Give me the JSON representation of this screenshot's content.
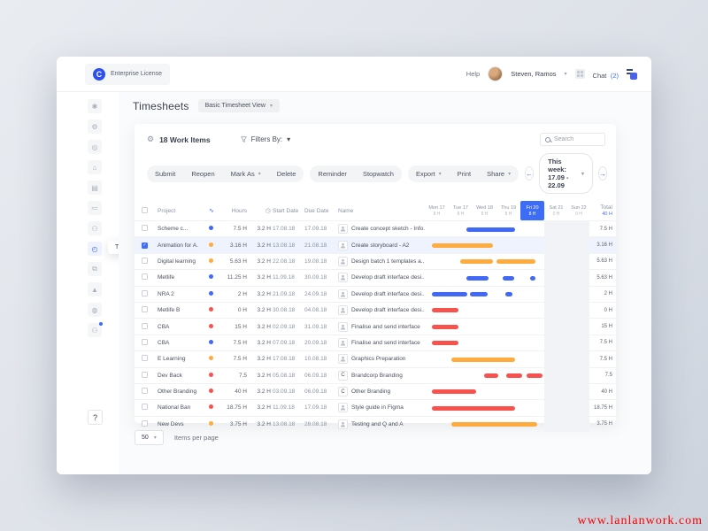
{
  "topbar": {
    "license": "Enterprise License",
    "logo_letter": "C",
    "help": "Help",
    "user": "Steven, Ramos",
    "chat_label": "Chat",
    "chat_count": "(2)"
  },
  "sidebar": {
    "tooltip": "Timesheets",
    "help_label": "?",
    "icons": [
      {
        "name": "dashboard-icon",
        "glyph": "✱"
      },
      {
        "name": "settings-icon",
        "glyph": "⚙"
      },
      {
        "name": "targets-icon",
        "glyph": "◎"
      },
      {
        "name": "home-icon",
        "glyph": "⌂"
      },
      {
        "name": "boards-icon",
        "glyph": "▤"
      },
      {
        "name": "tasks-icon",
        "glyph": "≔"
      },
      {
        "name": "people-icon",
        "glyph": "⚇"
      },
      {
        "name": "timesheets-icon",
        "glyph": "◴",
        "active": true
      },
      {
        "name": "documents-icon",
        "glyph": "⧉"
      },
      {
        "name": "reports-icon",
        "glyph": "▲"
      },
      {
        "name": "preferences-icon",
        "glyph": "◍"
      },
      {
        "name": "profile-icon",
        "glyph": "⚇",
        "badge": true
      }
    ]
  },
  "page": {
    "title": "Timesheets",
    "view_selector": "Basic Timesheet View"
  },
  "toolbar": {
    "work_items": "18 Work Items",
    "filters_label": "Filters By:",
    "search_placeholder": "Search",
    "groups": [
      [
        "Submit",
        "Reopen",
        "Mark As",
        "Delete"
      ],
      [
        "Reminder",
        "Stopwatch"
      ],
      [
        "Export",
        "Print",
        "Share"
      ]
    ],
    "week_label": "This week: 17.09 - 22.09"
  },
  "icons": {
    "chevron_down": "▾",
    "arrow_left": "←",
    "arrow_right": "→",
    "pulse": "∿",
    "clock": "◷",
    "gear": "⚙",
    "check": "✓"
  },
  "table": {
    "headers": {
      "project": "Project",
      "hours": "Hours",
      "start": "Start Date",
      "due": "Due Date",
      "name": "Name",
      "total": "Total",
      "total_sub": "40 H"
    },
    "days": [
      {
        "label": "Mon 17",
        "sub": "8 H"
      },
      {
        "label": "Tue 17",
        "sub": "8 H"
      },
      {
        "label": "Wed 18",
        "sub": "8 H"
      },
      {
        "label": "Thu 19",
        "sub": "8 H"
      },
      {
        "label": "Fri 20",
        "sub": "8 H",
        "active": true
      },
      {
        "label": "Sat 21",
        "sub": "0 H"
      },
      {
        "label": "Sun 22",
        "sub": "0 H"
      }
    ],
    "rows": [
      {
        "project": "Scheme c...",
        "status": "blue",
        "hours": "7.5 H",
        "hours2": "3.2 H",
        "start": "17.08.18",
        "due": "17.09.18",
        "avatar": "person",
        "name": "Create concept sketch - Info...",
        "total": "7.5 H",
        "bars": [
          [
            47,
            55,
            "blue"
          ]
        ]
      },
      {
        "project": "Animation for A.",
        "status": "orange",
        "hours": "3.16 H",
        "hours2": "3.2 H",
        "start": "13.08.18",
        "due": "21.08.18",
        "avatar": "person",
        "name": "Create storyboard - A2",
        "total": "3.16 H",
        "selected": true,
        "bars": [
          [
            8,
            69,
            "orange"
          ]
        ]
      },
      {
        "project": "Digital learning",
        "status": "orange",
        "hours": "5.63 H",
        "hours2": "3.2 H",
        "start": "22.08.18",
        "due": "19.08.18",
        "avatar": "person",
        "name": "Design batch 1 templates a...",
        "total": "5.63 H",
        "bars": [
          [
            40,
            37,
            "orange"
          ],
          [
            81,
            44,
            "orange"
          ]
        ]
      },
      {
        "project": "Metlife",
        "status": "blue",
        "hours": "11.25 H",
        "hours2": "3.2 H",
        "start": "11.09.18",
        "due": "30.09.18",
        "avatar": "person",
        "name": "Develop draft interface desi...",
        "total": "5.63 H",
        "bars": [
          [
            47,
            25,
            "blue"
          ],
          [
            88,
            13,
            "blue"
          ],
          [
            119,
            6,
            "blue"
          ]
        ]
      },
      {
        "project": "NRA 2",
        "status": "blue",
        "hours": "2 H",
        "hours2": "3.2 H",
        "start": "21.09.18",
        "due": "24.09.18",
        "avatar": "person",
        "name": "Develop draft interface desi...",
        "total": "2 H",
        "bars": [
          [
            8,
            40,
            "blue"
          ],
          [
            51,
            20,
            "blue"
          ],
          [
            91,
            8,
            "blue"
          ]
        ]
      },
      {
        "project": "Metlife B",
        "status": "red",
        "hours": "0 H",
        "hours2": "3.2 H",
        "start": "30.08.18",
        "due": "04.08.18",
        "avatar": "person",
        "name": "Develop draft interface desi...",
        "total": "0 H",
        "bars": [
          [
            8,
            30,
            "red"
          ]
        ]
      },
      {
        "project": "CBA",
        "status": "red",
        "hours": "15 H",
        "hours2": "3.2 H",
        "start": "02.09.18",
        "due": "31.09.18",
        "avatar": "person",
        "name": "Finalise and send interface",
        "total": "15 H",
        "bars": [
          [
            8,
            30,
            "red"
          ]
        ]
      },
      {
        "project": "CBA",
        "status": "blue",
        "hours": "7.5 H",
        "hours2": "3.2 H",
        "start": "07.09.18",
        "due": "20.09.18",
        "avatar": "person",
        "name": "Finalise and send interface",
        "total": "7.5 H",
        "bars": [
          [
            8,
            30,
            "red"
          ]
        ]
      },
      {
        "project": "E Learning",
        "status": "orange",
        "hours": "7.5 H",
        "hours2": "3.2 H",
        "start": "17.08.18",
        "due": "10.08.18",
        "avatar": "person",
        "name": "Graphics Preparation",
        "total": "7.5 H",
        "bars": [
          [
            30,
            72,
            "orange"
          ]
        ]
      },
      {
        "project": "Dev Back",
        "status": "red",
        "hours": "7.5",
        "hours2": "3.2 H",
        "start": "05.08.18",
        "due": "06.09.18",
        "avatar": "C",
        "name": "Brandcorp Branding",
        "total": "7.5",
        "bars": [
          [
            67,
            16,
            "red"
          ],
          [
            92,
            18,
            "red"
          ],
          [
            115,
            18,
            "red"
          ]
        ]
      },
      {
        "project": "Other Branding",
        "status": "red",
        "hours": "40 H",
        "hours2": "3.2 H",
        "start": "03.09.18",
        "due": "06.09.18",
        "avatar": "C",
        "name": "Other Branding",
        "total": "40 H",
        "bars": [
          [
            8,
            50,
            "red"
          ]
        ]
      },
      {
        "project": "National Ban",
        "status": "red",
        "hours": "18.75 H",
        "hours2": "3.2 H",
        "start": "11.09.18",
        "due": "17.09.18",
        "avatar": "person",
        "name": "Style guide in Figma",
        "total": "18.75 H",
        "bars": [
          [
            8,
            94,
            "red"
          ]
        ]
      },
      {
        "project": "New Devs",
        "status": "orange",
        "hours": "3.75 H",
        "hours2": "3.2 H",
        "start": "13.08.18",
        "due": "28.08.18",
        "avatar": "person",
        "name": "Testing and Q and A",
        "total": "3.75 H",
        "bars": [
          [
            30,
            97,
            "orange"
          ]
        ]
      }
    ]
  },
  "footer": {
    "page_size": "50",
    "items_label": "Items per page"
  },
  "watermark": "www.lanlanwork.com",
  "colors": {
    "blue": "#4168f6",
    "orange": "#ffab3d",
    "red": "#f8524f",
    "accent": "#3d6df6"
  }
}
